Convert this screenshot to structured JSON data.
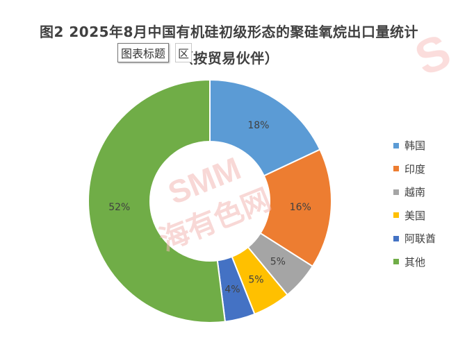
{
  "chart_data": {
    "type": "pie",
    "variant": "donut",
    "title": "图2 2025年8月中国有机硅初级形态的聚硅氧烷出口量统计（按贸易伙伴）",
    "title_lines": [
      "图2 2025年8月中国有机硅初级形态的聚硅氧烷出口量统计",
      "（按贸易伙伴）"
    ],
    "categories": [
      "韩国",
      "印度",
      "越南",
      "美国",
      "阿联酋",
      "其他"
    ],
    "values": [
      18,
      16,
      5,
      5,
      4,
      52
    ],
    "data_labels": [
      "18%",
      "16%",
      "5%",
      "5%",
      "4%",
      "52%"
    ],
    "colors": [
      "#5B9BD5",
      "#ED7D31",
      "#A5A5A5",
      "#FFC000",
      "#4472C4",
      "#70AD47"
    ],
    "legend_position": "right",
    "grid": false
  },
  "tooltip": {
    "text": "图表标题",
    "tail": "区"
  },
  "watermark": {
    "text": "SMM 上海有色网",
    "color": "#E8413C"
  }
}
